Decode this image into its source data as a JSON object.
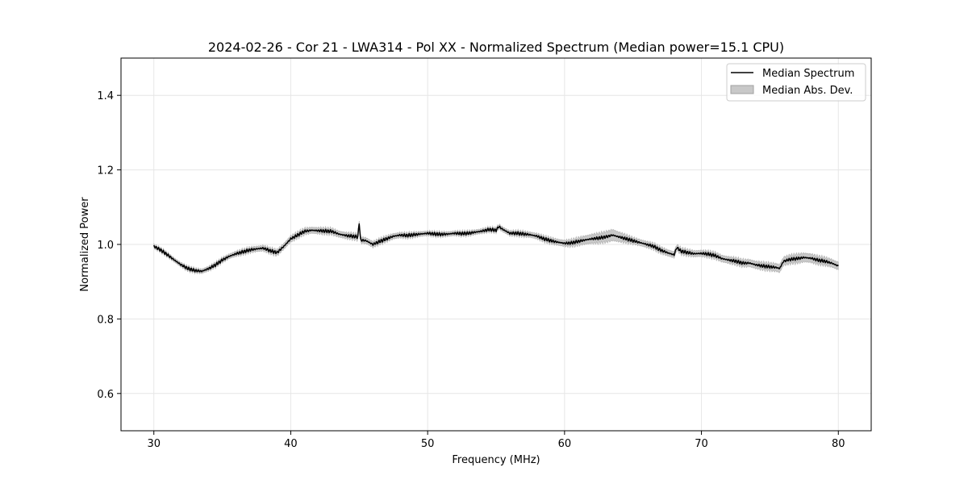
{
  "chart_data": {
    "type": "line",
    "title": "2024-02-26 - Cor 21 - LWA314 - Pol XX - Normalized Spectrum (Median power=15.1 CPU)",
    "xlabel": "Frequency (MHz)",
    "ylabel": "Normalized Power",
    "xlim": [
      27.6,
      82.4
    ],
    "ylim": [
      0.5,
      1.5
    ],
    "xticks": [
      30,
      40,
      50,
      60,
      70,
      80
    ],
    "yticks": [
      0.6,
      0.8,
      1.0,
      1.2,
      1.4
    ],
    "xtick_labels": [
      "30",
      "40",
      "50",
      "60",
      "70",
      "80"
    ],
    "ytick_labels": [
      "0.6",
      "0.8",
      "1.0",
      "1.2",
      "1.4"
    ],
    "grid": true,
    "legend_position": "top-right",
    "legend": [
      "Median Spectrum",
      "Median Abs. Dev."
    ],
    "series": [
      {
        "name": "Median Spectrum",
        "color": "#000000",
        "x": [
          30.0,
          30.5,
          31.0,
          31.5,
          32.0,
          32.5,
          33.0,
          33.5,
          34.0,
          34.5,
          35.0,
          35.5,
          36.0,
          36.5,
          37.0,
          37.5,
          38.0,
          38.5,
          39.0,
          39.5,
          40.0,
          40.5,
          41.0,
          41.5,
          42.0,
          42.5,
          43.0,
          43.5,
          44.0,
          44.5,
          44.9,
          45.0,
          45.1,
          45.5,
          46.0,
          46.5,
          47.0,
          47.5,
          48.0,
          48.5,
          49.0,
          49.5,
          50.0,
          50.5,
          51.0,
          51.5,
          52.0,
          52.5,
          53.0,
          53.5,
          54.0,
          54.5,
          55.0,
          55.2,
          55.5,
          56.0,
          56.5,
          57.0,
          57.5,
          58.0,
          58.5,
          59.0,
          59.5,
          60.0,
          60.5,
          61.0,
          61.5,
          62.0,
          62.5,
          63.0,
          63.5,
          64.0,
          64.5,
          65.0,
          65.5,
          66.0,
          66.5,
          67.0,
          67.5,
          68.0,
          68.2,
          68.5,
          69.0,
          69.5,
          70.0,
          70.5,
          71.0,
          71.5,
          72.0,
          72.5,
          73.0,
          73.5,
          74.0,
          74.5,
          75.0,
          75.5,
          75.7,
          76.0,
          76.5,
          77.0,
          77.5,
          78.0,
          78.5,
          79.0,
          79.5,
          80.0
        ],
        "values": [
          0.995,
          0.985,
          0.972,
          0.958,
          0.945,
          0.935,
          0.93,
          0.928,
          0.935,
          0.945,
          0.958,
          0.968,
          0.975,
          0.98,
          0.985,
          0.988,
          0.99,
          0.983,
          0.978,
          0.995,
          1.015,
          1.025,
          1.035,
          1.038,
          1.037,
          1.036,
          1.035,
          1.028,
          1.024,
          1.022,
          1.02,
          1.058,
          1.012,
          1.01,
          1.0,
          1.008,
          1.015,
          1.022,
          1.025,
          1.024,
          1.026,
          1.028,
          1.03,
          1.028,
          1.027,
          1.028,
          1.03,
          1.029,
          1.03,
          1.033,
          1.036,
          1.04,
          1.038,
          1.048,
          1.04,
          1.03,
          1.03,
          1.028,
          1.026,
          1.022,
          1.015,
          1.01,
          1.006,
          1.003,
          1.004,
          1.008,
          1.012,
          1.015,
          1.017,
          1.02,
          1.025,
          1.02,
          1.015,
          1.01,
          1.005,
          1.0,
          0.995,
          0.985,
          0.978,
          0.972,
          0.992,
          0.982,
          0.978,
          0.975,
          0.976,
          0.974,
          0.97,
          0.962,
          0.958,
          0.955,
          0.95,
          0.95,
          0.945,
          0.942,
          0.94,
          0.938,
          0.935,
          0.955,
          0.96,
          0.962,
          0.965,
          0.963,
          0.958,
          0.955,
          0.95,
          0.942
        ]
      },
      {
        "name": "Median Abs. Dev.",
        "color": "#c8c8c8",
        "x": [
          30.0,
          35.0,
          40.0,
          45.0,
          50.0,
          55.0,
          60.0,
          62.0,
          63.5,
          65.0,
          70.0,
          75.0,
          77.0,
          80.0
        ],
        "half_width": [
          0.005,
          0.006,
          0.008,
          0.008,
          0.006,
          0.006,
          0.008,
          0.012,
          0.015,
          0.008,
          0.008,
          0.01,
          0.012,
          0.01
        ]
      }
    ]
  }
}
